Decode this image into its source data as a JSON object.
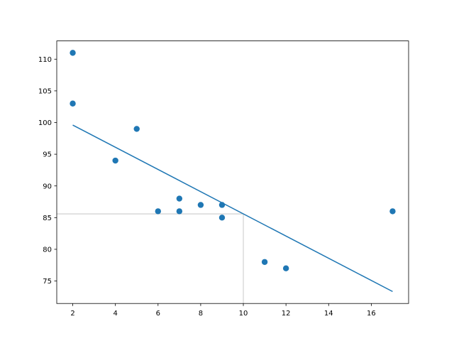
{
  "chart_data": {
    "type": "scatter",
    "title": "",
    "xlabel": "",
    "ylabel": "",
    "xlim": [
      1.25,
      17.75
    ],
    "ylim": [
      71.45,
      112.88
    ],
    "grid": false,
    "x_ticks": [
      2,
      4,
      6,
      8,
      10,
      12,
      14,
      16
    ],
    "y_ticks": [
      75,
      80,
      85,
      90,
      95,
      100,
      105,
      110
    ],
    "points": {
      "x": [
        5,
        7,
        8,
        7,
        2,
        17,
        2,
        9,
        4,
        11,
        12,
        9,
        6
      ],
      "y": [
        99,
        86,
        87,
        88,
        111,
        86,
        103,
        87,
        94,
        78,
        77,
        85,
        86
      ],
      "color": "#1f77b4"
    },
    "regression_line": {
      "slope": -1.7513,
      "intercept": 103.106,
      "x_from": 2,
      "x_to": 17,
      "color": "#1f77b4"
    },
    "prediction_guide": {
      "x": 10,
      "y": 85.59,
      "color": "#bbbbbb"
    }
  }
}
